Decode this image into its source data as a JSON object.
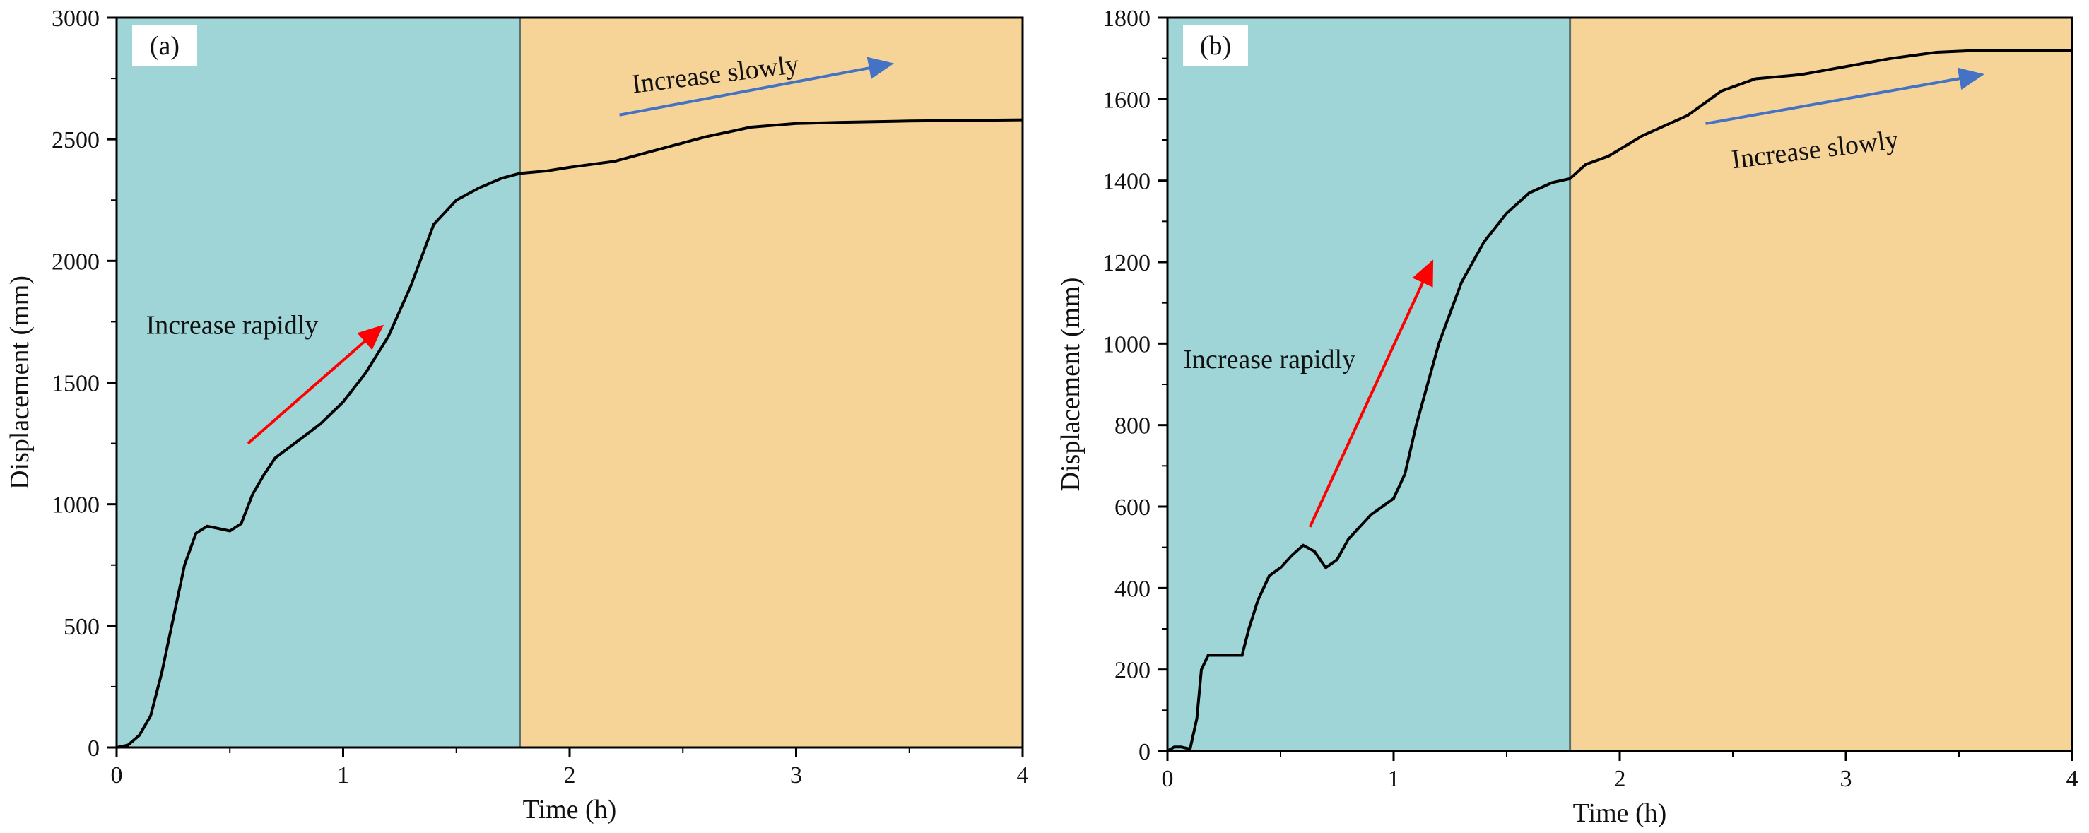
{
  "chart_data": [
    {
      "type": "line",
      "panel_label": "(a)",
      "xlabel": "Time (h)",
      "ylabel": "Displacement (mm)",
      "xlim": [
        0,
        4
      ],
      "ylim": [
        0,
        3000
      ],
      "xticks": [
        0,
        1,
        2,
        3,
        4
      ],
      "yticks": [
        0,
        500,
        1000,
        1500,
        2000,
        2500,
        3000
      ],
      "regions": [
        {
          "name": "rapid-phase",
          "x0": 0,
          "x1": 1.78,
          "color": "#9fd5d6"
        },
        {
          "name": "slow-phase",
          "x0": 1.78,
          "x1": 4,
          "color": "#f6d498"
        }
      ],
      "divider_x": 1.78,
      "series": [
        {
          "name": "Displacement",
          "color": "#000000",
          "x": [
            0,
            0.05,
            0.1,
            0.15,
            0.2,
            0.25,
            0.3,
            0.35,
            0.4,
            0.45,
            0.5,
            0.55,
            0.6,
            0.65,
            0.7,
            0.8,
            0.9,
            1.0,
            1.1,
            1.2,
            1.3,
            1.4,
            1.5,
            1.6,
            1.7,
            1.78,
            1.9,
            2.0,
            2.2,
            2.4,
            2.6,
            2.8,
            3.0,
            3.2,
            3.5,
            4.0
          ],
          "values": [
            0,
            10,
            50,
            130,
            310,
            530,
            750,
            880,
            910,
            900,
            890,
            920,
            1040,
            1120,
            1190,
            1260,
            1330,
            1420,
            1540,
            1690,
            1900,
            2150,
            2250,
            2300,
            2340,
            2360,
            2370,
            2385,
            2410,
            2460,
            2510,
            2550,
            2565,
            2570,
            2575,
            2580
          ]
        }
      ],
      "annotations": [
        {
          "text": "Increase rapidly",
          "x": 0.13,
          "y": 1700,
          "arrow_from": [
            0.58,
            1250
          ],
          "arrow_to": [
            1.17,
            1730
          ],
          "arrow_color": "#ff0000"
        },
        {
          "text": "Increase slowly",
          "x": 2.28,
          "y": 2690,
          "arrow_from": [
            2.22,
            2600
          ],
          "arrow_to": [
            3.42,
            2810
          ],
          "arrow_color": "#4472c4"
        }
      ]
    },
    {
      "type": "line",
      "panel_label": "(b)",
      "xlabel": "Time (h)",
      "ylabel": "Displacement (mm)",
      "xlim": [
        0,
        4
      ],
      "ylim": [
        0,
        1800
      ],
      "xticks": [
        0,
        1,
        2,
        3,
        4
      ],
      "yticks": [
        0,
        200,
        400,
        600,
        800,
        1000,
        1200,
        1400,
        1600,
        1800
      ],
      "regions": [
        {
          "name": "rapid-phase",
          "x0": 0,
          "x1": 1.78,
          "color": "#9fd5d6"
        },
        {
          "name": "slow-phase",
          "x0": 1.78,
          "x1": 4,
          "color": "#f6d498"
        }
      ],
      "divider_x": 1.78,
      "series": [
        {
          "name": "Displacement",
          "color": "#000000",
          "x": [
            0,
            0.03,
            0.06,
            0.1,
            0.13,
            0.15,
            0.18,
            0.25,
            0.33,
            0.36,
            0.4,
            0.45,
            0.5,
            0.55,
            0.6,
            0.65,
            0.7,
            0.75,
            0.8,
            0.9,
            1.0,
            1.05,
            1.1,
            1.2,
            1.3,
            1.4,
            1.5,
            1.6,
            1.7,
            1.78,
            1.85,
            1.95,
            2.1,
            2.3,
            2.45,
            2.6,
            2.8,
            3.0,
            3.2,
            3.4,
            3.6,
            4.0
          ],
          "values": [
            0,
            10,
            10,
            5,
            80,
            200,
            235,
            235,
            235,
            300,
            370,
            430,
            450,
            480,
            505,
            490,
            450,
            470,
            520,
            580,
            620,
            680,
            800,
            1000,
            1150,
            1250,
            1320,
            1370,
            1395,
            1405,
            1440,
            1460,
            1510,
            1560,
            1620,
            1650,
            1660,
            1680,
            1700,
            1715,
            1720,
            1720
          ]
        }
      ],
      "annotations": [
        {
          "text": "Increase rapidly",
          "x": 0.07,
          "y": 940,
          "arrow_from": [
            0.63,
            550
          ],
          "arrow_to": [
            1.17,
            1200
          ],
          "arrow_color": "#ff0000"
        },
        {
          "text": "Increase slowly",
          "x": 2.5,
          "y": 1430,
          "arrow_from": [
            2.38,
            1540
          ],
          "arrow_to": [
            3.6,
            1660
          ],
          "arrow_color": "#4472c4"
        }
      ]
    }
  ]
}
